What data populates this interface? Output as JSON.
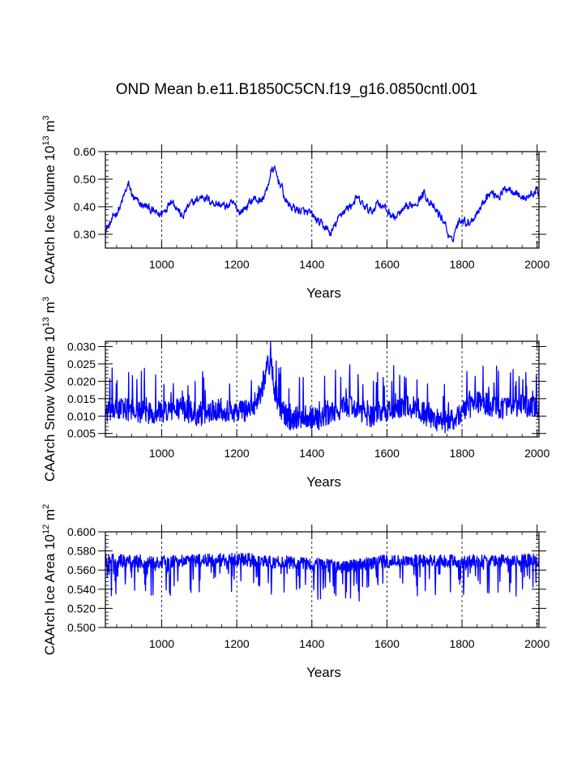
{
  "title": "OND Mean b.e11.B1850C5CN.f19_g16.0850cntl.001",
  "colors": {
    "series": "#0000ff",
    "axis": "#000000",
    "grid": "#000000"
  },
  "chart_data": [
    {
      "type": "line",
      "name": "ice-volume",
      "ylabel": {
        "main": "CAArch Ice Volume 10",
        "exp": "13",
        "unit": " m",
        "unit_exp": "3"
      },
      "xlabel": "Years",
      "xlim": [
        850,
        2005
      ],
      "ylim": [
        0.25,
        0.6
      ],
      "xticks": [
        1000,
        1200,
        1400,
        1600,
        1800,
        2000
      ],
      "yticks": [
        0.3,
        0.4,
        0.5,
        0.6
      ],
      "ytick_labels": [
        "0.30",
        "0.40",
        "0.50",
        "0.60"
      ],
      "x_minor_step": 40,
      "y_minor_step": 0.02,
      "grid_x": [
        1000,
        1200,
        1400,
        1600,
        1800
      ],
      "noise": 0.012,
      "anchors": [
        [
          850,
          0.32
        ],
        [
          860,
          0.33
        ],
        [
          875,
          0.37
        ],
        [
          890,
          0.4
        ],
        [
          905,
          0.46
        ],
        [
          912,
          0.48
        ],
        [
          925,
          0.43
        ],
        [
          940,
          0.41
        ],
        [
          960,
          0.4
        ],
        [
          980,
          0.38
        ],
        [
          995,
          0.37
        ],
        [
          1010,
          0.39
        ],
        [
          1025,
          0.43
        ],
        [
          1040,
          0.4
        ],
        [
          1055,
          0.36
        ],
        [
          1070,
          0.4
        ],
        [
          1090,
          0.42
        ],
        [
          1110,
          0.44
        ],
        [
          1130,
          0.42
        ],
        [
          1150,
          0.41
        ],
        [
          1170,
          0.4
        ],
        [
          1190,
          0.41
        ],
        [
          1210,
          0.38
        ],
        [
          1225,
          0.4
        ],
        [
          1245,
          0.43
        ],
        [
          1265,
          0.42
        ],
        [
          1280,
          0.46
        ],
        [
          1290,
          0.52
        ],
        [
          1298,
          0.54
        ],
        [
          1310,
          0.5
        ],
        [
          1320,
          0.47
        ],
        [
          1330,
          0.42
        ],
        [
          1345,
          0.4
        ],
        [
          1360,
          0.39
        ],
        [
          1380,
          0.38
        ],
        [
          1400,
          0.37
        ],
        [
          1420,
          0.34
        ],
        [
          1440,
          0.32
        ],
        [
          1450,
          0.3
        ],
        [
          1465,
          0.34
        ],
        [
          1480,
          0.38
        ],
        [
          1500,
          0.4
        ],
        [
          1520,
          0.43
        ],
        [
          1540,
          0.4
        ],
        [
          1560,
          0.38
        ],
        [
          1575,
          0.42
        ],
        [
          1590,
          0.4
        ],
        [
          1605,
          0.38
        ],
        [
          1620,
          0.36
        ],
        [
          1640,
          0.38
        ],
        [
          1660,
          0.4
        ],
        [
          1680,
          0.42
        ],
        [
          1700,
          0.45
        ],
        [
          1720,
          0.4
        ],
        [
          1740,
          0.37
        ],
        [
          1755,
          0.34
        ],
        [
          1765,
          0.29
        ],
        [
          1772,
          0.27
        ],
        [
          1785,
          0.33
        ],
        [
          1800,
          0.36
        ],
        [
          1815,
          0.34
        ],
        [
          1830,
          0.36
        ],
        [
          1850,
          0.4
        ],
        [
          1865,
          0.44
        ],
        [
          1880,
          0.45
        ],
        [
          1900,
          0.44
        ],
        [
          1920,
          0.47
        ],
        [
          1940,
          0.46
        ],
        [
          1960,
          0.43
        ],
        [
          1980,
          0.44
        ],
        [
          2000,
          0.46
        ],
        [
          2005,
          0.43
        ]
      ]
    },
    {
      "type": "line",
      "name": "snow-volume",
      "ylabel": {
        "main": "CAArch Snow Volume 10",
        "exp": "13",
        "unit": " m",
        "unit_exp": "3"
      },
      "xlabel": "Years",
      "xlim": [
        850,
        2005
      ],
      "ylim": [
        0.004,
        0.0315
      ],
      "xticks": [
        1000,
        1200,
        1400,
        1600,
        1800,
        2000
      ],
      "yticks": [
        0.005,
        0.01,
        0.015,
        0.02,
        0.025,
        0.03
      ],
      "ytick_labels": [
        "0.005",
        "0.010",
        "0.015",
        "0.020",
        "0.025",
        "0.030"
      ],
      "x_minor_step": 40,
      "y_minor_step": 0.001,
      "grid_x": [
        1000,
        1200,
        1400,
        1600,
        1800
      ],
      "noise": 0.0035,
      "anchors": [
        [
          850,
          0.011
        ],
        [
          900,
          0.012
        ],
        [
          950,
          0.011
        ],
        [
          1000,
          0.011
        ],
        [
          1050,
          0.012
        ],
        [
          1100,
          0.01
        ],
        [
          1150,
          0.012
        ],
        [
          1200,
          0.011
        ],
        [
          1240,
          0.012
        ],
        [
          1265,
          0.017
        ],
        [
          1280,
          0.024
        ],
        [
          1292,
          0.025
        ],
        [
          1300,
          0.018
        ],
        [
          1315,
          0.012
        ],
        [
          1340,
          0.009
        ],
        [
          1380,
          0.01
        ],
        [
          1420,
          0.009
        ],
        [
          1460,
          0.011
        ],
        [
          1500,
          0.013
        ],
        [
          1550,
          0.01
        ],
        [
          1600,
          0.011
        ],
        [
          1640,
          0.013
        ],
        [
          1680,
          0.012
        ],
        [
          1720,
          0.009
        ],
        [
          1760,
          0.008
        ],
        [
          1780,
          0.009
        ],
        [
          1800,
          0.011
        ],
        [
          1840,
          0.014
        ],
        [
          1880,
          0.013
        ],
        [
          1920,
          0.012
        ],
        [
          1960,
          0.013
        ],
        [
          2005,
          0.012
        ]
      ]
    },
    {
      "type": "line",
      "name": "ice-area",
      "ylabel": {
        "main": "CAArch Ice Area 10",
        "exp": "12",
        "unit": " m",
        "unit_exp": "2"
      },
      "xlabel": "Years",
      "xlim": [
        850,
        2005
      ],
      "ylim": [
        0.5,
        0.6
      ],
      "xticks": [
        1000,
        1200,
        1400,
        1600,
        1800,
        2000
      ],
      "yticks": [
        0.5,
        0.52,
        0.54,
        0.56,
        0.58,
        0.6
      ],
      "ytick_labels": [
        "0.500",
        "0.520",
        "0.540",
        "0.560",
        "0.580",
        "0.600"
      ],
      "x_minor_step": 40,
      "y_minor_step": 0.004,
      "grid_x": [
        1000,
        1200,
        1400,
        1600,
        1800
      ],
      "noise": 0.013,
      "ymax_clip": 0.58,
      "anchors": [
        [
          850,
          0.567
        ],
        [
          1000,
          0.565
        ],
        [
          1200,
          0.568
        ],
        [
          1400,
          0.563
        ],
        [
          1480,
          0.56
        ],
        [
          1600,
          0.566
        ],
        [
          1800,
          0.566
        ],
        [
          2005,
          0.567
        ]
      ]
    }
  ]
}
